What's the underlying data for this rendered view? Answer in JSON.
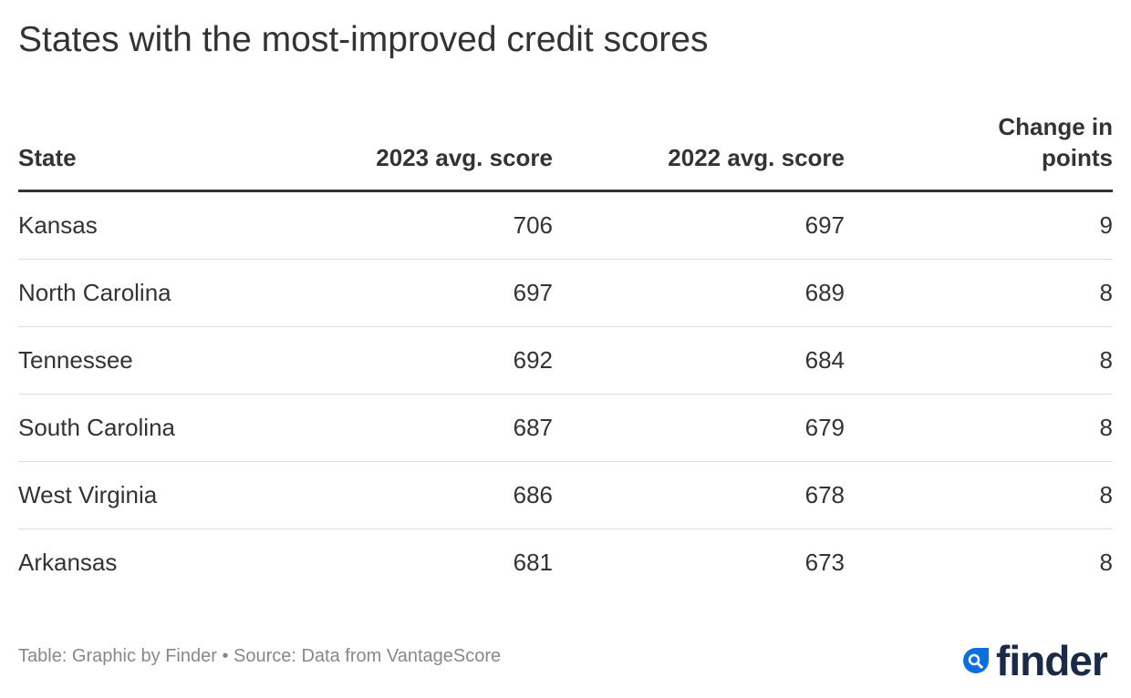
{
  "title": "States with the most-improved credit scores",
  "chart_data": {
    "type": "table",
    "columns": [
      "State",
      "2023 avg. score",
      "2022 avg. score",
      "Change in points"
    ],
    "rows": [
      [
        "Kansas",
        "706",
        "697",
        "9"
      ],
      [
        "North Carolina",
        "697",
        "689",
        "8"
      ],
      [
        "Tennessee",
        "692",
        "684",
        "8"
      ],
      [
        "South Carolina",
        "687",
        "679",
        "8"
      ],
      [
        "West Virginia",
        "686",
        "678",
        "8"
      ],
      [
        "Arkansas",
        "681",
        "673",
        "8"
      ]
    ]
  },
  "footer": "Table: Graphic by Finder • Source: Data from VantageScore",
  "logo": {
    "text": "finder",
    "color": "#1a2b48",
    "accent": "#0b6fe0"
  }
}
